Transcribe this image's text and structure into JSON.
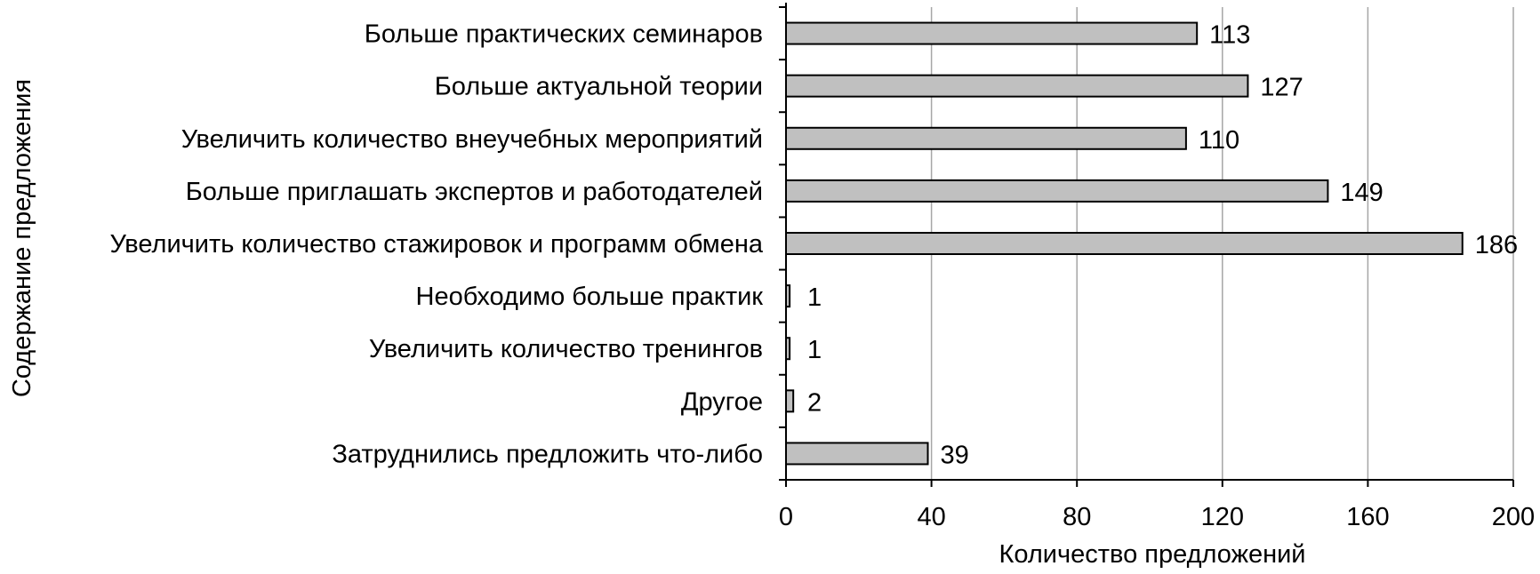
{
  "chart_data": {
    "type": "bar",
    "orientation": "horizontal",
    "categories": [
      "Больше практических семинаров",
      "Больше актуальной теории",
      "Увеличить количество внеучебных мероприятий",
      "Больше приглашать экспертов и работодателей",
      "Увеличить количество стажировок и программ обмена",
      "Необходимо больше практик",
      "Увеличить количество тренингов",
      "Другое",
      "Затруднились предложить что-либо"
    ],
    "values": [
      113,
      127,
      110,
      149,
      186,
      1,
      1,
      2,
      39
    ],
    "data_labels": [
      "113",
      "127",
      "110",
      "149",
      "186",
      "1",
      "1",
      "2",
      "39"
    ],
    "xlabel": "Количество предложений",
    "ylabel": "Содержание предложения",
    "xlim": [
      0,
      200
    ],
    "xticks": [
      0,
      40,
      80,
      120,
      160,
      200
    ],
    "xtick_labels": [
      "0",
      "40",
      "80",
      "120",
      "160",
      "200"
    ],
    "grid": "vertical",
    "bar_color": "#c0c0c0",
    "bar_edge_color": "#000000",
    "grid_color": "#a6a6a6"
  }
}
